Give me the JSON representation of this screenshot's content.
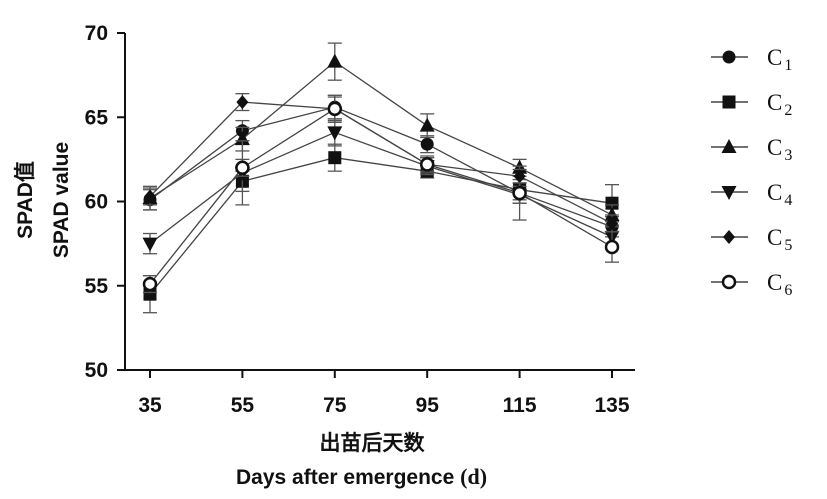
{
  "chart_data": {
    "type": "line",
    "x": [
      35,
      55,
      75,
      95,
      115,
      135
    ],
    "xticks": [
      "35",
      "55",
      "75",
      "95",
      "115",
      "135"
    ],
    "yticks": [
      "50",
      "55",
      "60",
      "65",
      "70"
    ],
    "ylim": [
      50,
      70
    ],
    "ylabel_zh": "SPAD值",
    "ylabel_en": "SPAD value",
    "xlabel_zh": "出苗后天数",
    "xlabel_en": "Days after emergence",
    "xlabel_unit": "(d)",
    "legend_position": "right",
    "grid": false,
    "series": [
      {
        "name": "C",
        "sub": "1",
        "marker": "circle",
        "values": [
          60.1,
          64.2,
          65.6,
          63.4,
          60.5,
          58.5
        ],
        "errors": [
          0.6,
          0.6,
          0.7,
          0.5,
          0.6,
          0.6
        ]
      },
      {
        "name": "C",
        "sub": "2",
        "marker": "square",
        "values": [
          54.5,
          61.2,
          62.6,
          61.8,
          60.7,
          59.9
        ],
        "errors": [
          1.1,
          0.6,
          0.8,
          0.4,
          0.6,
          1.1
        ]
      },
      {
        "name": "C",
        "sub": "3",
        "marker": "triangle-up",
        "values": [
          60.2,
          63.7,
          68.3,
          64.5,
          62.0,
          59.2
        ],
        "errors": [
          0.7,
          0.7,
          1.1,
          0.7,
          0.5,
          0.6
        ]
      },
      {
        "name": "C",
        "sub": "4",
        "marker": "triangle-down",
        "values": [
          57.5,
          61.7,
          64.1,
          62.1,
          60.4,
          57.9
        ],
        "errors": [
          0.6,
          1.9,
          0.8,
          0.5,
          1.5,
          0.6
        ]
      },
      {
        "name": "C",
        "sub": "5",
        "marker": "diamond",
        "values": [
          60.3,
          65.9,
          65.5,
          62.2,
          61.5,
          58.7
        ],
        "errors": [
          0.5,
          0.5,
          0.8,
          0.4,
          0.6,
          0.5
        ]
      },
      {
        "name": "C",
        "sub": "6",
        "marker": "circle-open",
        "values": [
          55.1,
          62.0,
          65.5,
          62.2,
          60.5,
          57.3
        ],
        "errors": [
          0.5,
          0.5,
          0.7,
          0.5,
          0.6,
          0.9
        ]
      }
    ]
  }
}
